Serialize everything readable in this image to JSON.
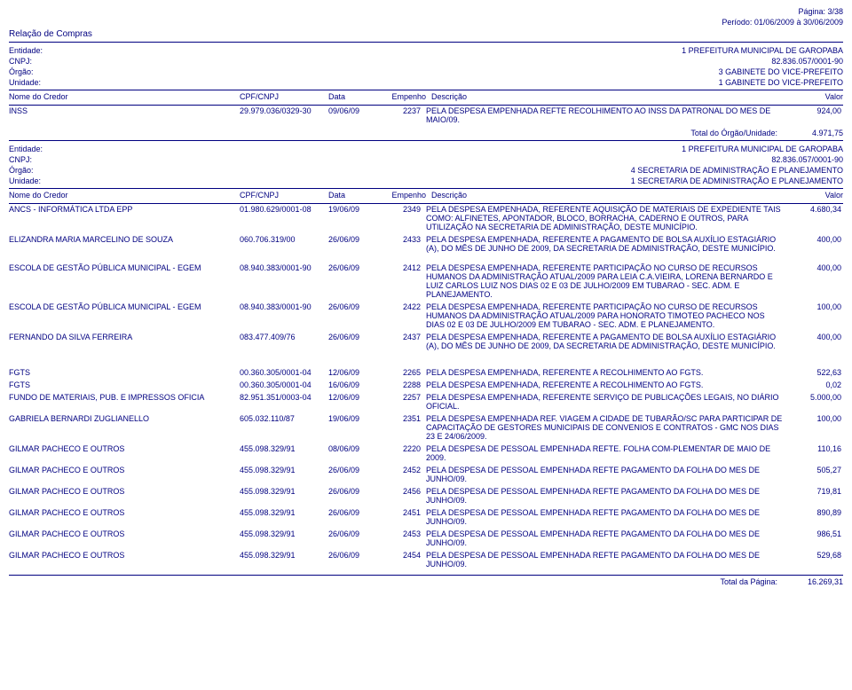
{
  "page_info": {
    "page_label": "Página: 3/38",
    "period_label": "Período:  01/06/2009  à   30/06/2009",
    "report_title": "Relação de Compras"
  },
  "sections": [
    {
      "header": {
        "entidade_lbl": "Entidade:",
        "entidade_val": "1  PREFEITURA MUNICIPAL DE GAROPABA",
        "cnpj_lbl": "CNPJ:",
        "cnpj_val": "82.836.057/0001-90",
        "orgao_lbl": "Órgão:",
        "orgao_val": "3  GABINETE DO VICE-PREFEITO",
        "unidade_lbl": "Unidade:",
        "unidade_val": "1  GABINETE DO VICE-PREFEITO"
      },
      "col_headers": {
        "nome": "Nome do Credor",
        "cpf": "CPF/CNPJ",
        "data": "Data",
        "emp": "Empenho",
        "desc": "Descrição",
        "valor": "Valor"
      },
      "rows": [
        {
          "nome": "INSS",
          "cpf": "29.979.036/0329-30",
          "data": "09/06/09",
          "emp": "2237",
          "desc": "PELA DESPESA EMPENHADA REFTE RECOLHIMENTO AO INSS DA PATRONAL DO MES DE MAIO/09.",
          "valor": "924,00"
        }
      ],
      "total": {
        "label": "Total do Órgão/Unidade:",
        "value": "4.971,75"
      }
    },
    {
      "header": {
        "entidade_lbl": "Entidade:",
        "entidade_val": "1  PREFEITURA MUNICIPAL DE GAROPABA",
        "cnpj_lbl": "CNPJ:",
        "cnpj_val": "82.836.057/0001-90",
        "orgao_lbl": "Órgão:",
        "orgao_val": "4  SECRETARIA DE ADMINISTRAÇÃO E PLANEJAMENTO",
        "unidade_lbl": "Unidade:",
        "unidade_val": "1  SECRETARIA DE ADMINISTRAÇÃO E PLANEJAMENTO"
      },
      "col_headers": {
        "nome": "Nome do Credor",
        "cpf": "CPF/CNPJ",
        "data": "Data",
        "emp": "Empenho",
        "desc": "Descrição",
        "valor": "Valor"
      },
      "groups": [
        {
          "rows": [
            {
              "nome": "ANCS - INFORMÁTICA LTDA EPP",
              "cpf": "01.980.629/0001-08",
              "data": "19/06/09",
              "emp": "2349",
              "desc": "PELA DESPESA EMPENHADA, REFERENTE AQUISIÇÃO DE MATERIAIS DE EXPEDIENTE TAIS COMO: ALFINETES, APONTADOR, BLOCO, BORRACHA, CADERNO E OUTROS, PARA UTILIZAÇÃO NA SECRETARIA DE ADMINISTRAÇÃO, DESTE MUNICÍPIO.",
              "valor": "4.680,34"
            },
            {
              "nome": "ELIZANDRA MARIA MARCELINO DE SOUZA",
              "cpf": "060.706.319/00",
              "data": "26/06/09",
              "emp": "2433",
              "desc": "PELA DESPESA EMPENHADA, REFERENTE A PAGAMENTO DE BOLSA AUXÍLIO ESTAGIÁRIO (A), DO MÊS DE JUNHO DE 2009, DA SECRETARIA DE ADMINISTRAÇÃO, DESTE MUNICÍPIO.",
              "valor": "400,00"
            }
          ]
        },
        {
          "rows": [
            {
              "nome": "ESCOLA DE GESTÃO PÚBLICA MUNICIPAL - EGEM",
              "cpf": "08.940.383/0001-90",
              "data": "26/06/09",
              "emp": "2412",
              "desc": "PELA DESPESA EMPENHADA, REFERENTE PARTICIPAÇÃO NO CURSO DE RECURSOS HUMANOS DA ADMINISTRAÇÃO ATUAL/2009 PARA LEIA C.A.VIEIRA, LORENA BERNARDO E LUIZ CARLOS LUIZ NOS DIAS 02 E 03 DE JULHO/2009 EM TUBARAO - SEC. ADM. E PLANEJAMENTO.",
              "valor": "400,00"
            },
            {
              "nome": "ESCOLA DE GESTÃO PÚBLICA MUNICIPAL - EGEM",
              "cpf": "08.940.383/0001-90",
              "data": "26/06/09",
              "emp": "2422",
              "desc": "PELA DESPESA EMPENHADA, REFERENTE PARTICIPAÇÃO NO CURSO DE RECURSOS HUMANOS DA ADMINISTRAÇÃO ATUAL/2009 PARA HONORATO TIMOTEO PACHECO NOS DIAS 02 E 03 DE JULHO/2009 EM TUBARAO - SEC. ADM. E PLANEJAMENTO.",
              "valor": "100,00"
            },
            {
              "nome": "FERNANDO DA SILVA FERREIRA",
              "cpf": "083.477.409/76",
              "data": "26/06/09",
              "emp": "2437",
              "desc": "PELA DESPESA EMPENHADA, REFERENTE A PAGAMENTO DE BOLSA AUXÍLIO ESTAGIÁRIO (A), DO MÊS DE JUNHO DE 2009, DA SECRETARIA DE ADMINISTRAÇÃO, DESTE MUNICÍPIO.",
              "valor": "400,00"
            }
          ]
        },
        {
          "rows": [
            {
              "nome": "FGTS",
              "cpf": "00.360.305/0001-04",
              "data": "12/06/09",
              "emp": "2265",
              "desc": "PELA DESPESA EMPENHADA, REFERENTE A RECOLHIMENTO AO FGTS.",
              "valor": "522,63"
            },
            {
              "nome": "FGTS",
              "cpf": "00.360.305/0001-04",
              "data": "16/06/09",
              "emp": "2288",
              "desc": "PELA DESPESA EMPENHADA, REFERENTE A RECOLHIMENTO AO FGTS.",
              "valor": "0,02"
            },
            {
              "nome": "FUNDO DE MATERIAIS, PUB. E IMPRESSOS OFICIA",
              "cpf": "82.951.351/0003-04",
              "data": "12/06/09",
              "emp": "2257",
              "desc": "PELA DESPESA EMPENHADA, REFERENTE SERVIÇO DE PUBLICAÇÕES LEGAIS, NO DIÁRIO OFICIAL.",
              "valor": "5.000,00"
            },
            {
              "nome": "GABRIELA BERNARDI ZUGLIANELLO",
              "cpf": "605.032.110/87",
              "data": "19/06/09",
              "emp": "2351",
              "desc": "PELA DESPESA EMPENHADA REF. VIAGEM A CIDADE DE TUBARÃO/SC PARA PARTICIPAR DE CAPACITAÇÃO DE GESTORES MUNICIPAIS DE CONVENIOS E CONTRATOS - GMC NOS DIAS 23 E 24/06/2009.",
              "valor": "100,00"
            },
            {
              "nome": "GILMAR PACHECO E OUTROS",
              "cpf": "455.098.329/91",
              "data": "08/06/09",
              "emp": "2220",
              "desc": "PELA DESPESA DE PESSOAL EMPENHADA REFTE. FOLHA  COM-PLEMENTAR DE MAIO DE 2009.",
              "valor": "110,16"
            },
            {
              "nome": "GILMAR PACHECO E OUTROS",
              "cpf": "455.098.329/91",
              "data": "26/06/09",
              "emp": "2452",
              "desc": "PELA DESPESA DE PESSOAL EMPENHADA REFTE PAGAMENTO DA FOLHA DO MES DE JUNHO/09.",
              "valor": "505,27"
            },
            {
              "nome": "GILMAR PACHECO E OUTROS",
              "cpf": "455.098.329/91",
              "data": "26/06/09",
              "emp": "2456",
              "desc": "PELA DESPESA DE PESSOAL EMPENHADA REFTE PAGAMENTO DA FOLHA DO MES DE JUNHO/09.",
              "valor": "719,81"
            },
            {
              "nome": "GILMAR PACHECO E OUTROS",
              "cpf": "455.098.329/91",
              "data": "26/06/09",
              "emp": "2451",
              "desc": "PELA DESPESA DE PESSOAL EMPENHADA REFTE PAGAMENTO DA FOLHA DO MES DE JUNHO/09.",
              "valor": "890,89"
            },
            {
              "nome": "GILMAR PACHECO E OUTROS",
              "cpf": "455.098.329/91",
              "data": "26/06/09",
              "emp": "2453",
              "desc": "PELA DESPESA DE PESSOAL EMPENHADA REFTE PAGAMENTO DA FOLHA DO MES DE JUNHO/09.",
              "valor": "986,51"
            },
            {
              "nome": "GILMAR PACHECO E OUTROS",
              "cpf": "455.098.329/91",
              "data": "26/06/09",
              "emp": "2454",
              "desc": "PELA DESPESA DE PESSOAL EMPENHADA REFTE PAGAMENTO DA FOLHA DO MES DE JUNHO/09.",
              "valor": "529,68"
            }
          ]
        }
      ],
      "page_total": {
        "label": "Total da Página:",
        "value": "16.269,31"
      }
    }
  ]
}
